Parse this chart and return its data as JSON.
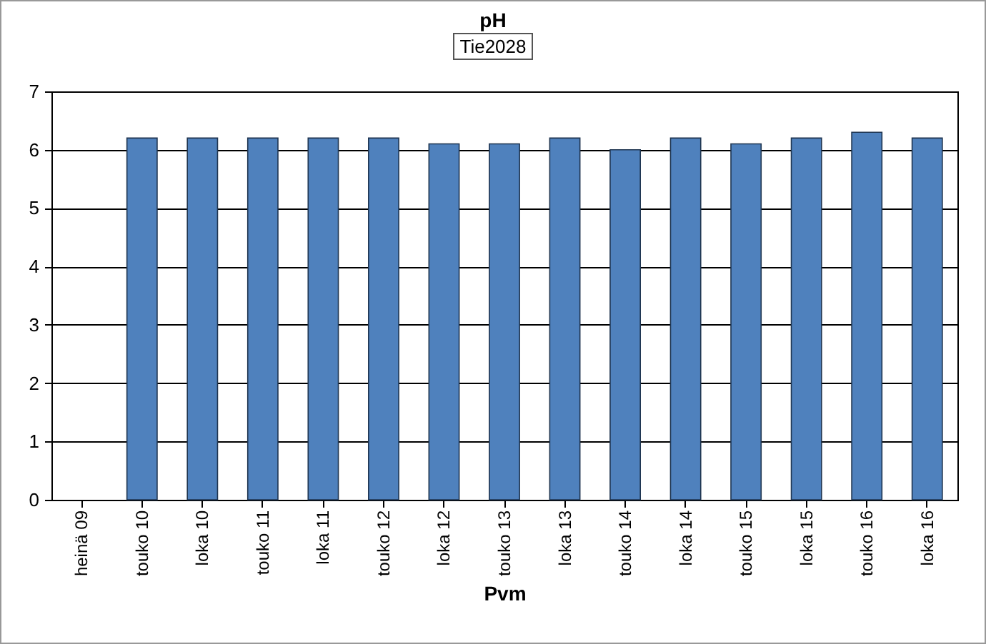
{
  "chart_data": {
    "type": "bar",
    "title": "pH",
    "subtitle": "Tie2028",
    "xlabel": "Pvm",
    "categories": [
      "heinä 09",
      "touko 10",
      "loka 10",
      "touko 11",
      "loka 11",
      "touko 12",
      "loka 12",
      "touko 13",
      "loka 13",
      "touko 14",
      "loka 14",
      "touko 15",
      "loka 15",
      "touko 16",
      "loka 16"
    ],
    "values": [
      null,
      6.2,
      6.2,
      6.2,
      6.2,
      6.2,
      6.1,
      6.1,
      6.2,
      6.0,
      6.2,
      6.1,
      6.2,
      6.3,
      6.2
    ],
    "color": "#4f81bd",
    "ylim": [
      0,
      7
    ],
    "yticks": [
      0,
      1,
      2,
      3,
      4,
      5,
      6,
      7
    ],
    "grid": "y"
  }
}
